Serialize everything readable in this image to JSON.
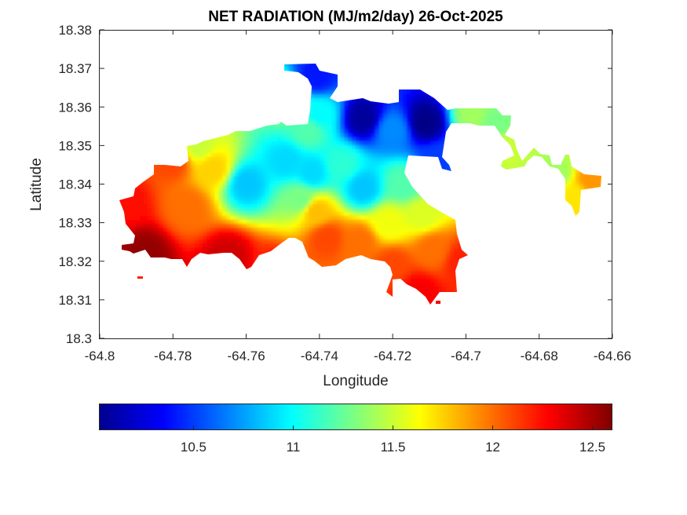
{
  "chart_data": {
    "type": "heatmap",
    "title": "NET RADIATION (MJ/m2/day) 26-Oct-2025",
    "xlabel": "Longitude",
    "ylabel": "Latitude",
    "xlim": [
      -64.8,
      -64.66
    ],
    "ylim": [
      18.3,
      18.38
    ],
    "x_ticks": [
      -64.8,
      -64.78,
      -64.76,
      -64.74,
      -64.72,
      -64.7,
      -64.68,
      -64.66
    ],
    "x_tick_labels": [
      "-64.8",
      "-64.78",
      "-64.76",
      "-64.74",
      "-64.72",
      "-64.7",
      "-64.68",
      "-64.66"
    ],
    "y_ticks": [
      18.3,
      18.31,
      18.32,
      18.33,
      18.34,
      18.35,
      18.36,
      18.37,
      18.38
    ],
    "y_tick_labels": [
      "18.3",
      "18.31",
      "18.32",
      "18.33",
      "18.34",
      "18.35",
      "18.36",
      "18.37",
      "18.38"
    ],
    "colormap": "jet",
    "color_range": [
      10.03,
      12.6
    ],
    "colorbar": {
      "orientation": "horizontal",
      "placement": "bottom",
      "ticks": [
        10.5,
        11,
        11.5,
        12,
        12.5
      ],
      "tick_labels": [
        "10.5",
        "11",
        "11.5",
        "12",
        "12.5"
      ]
    },
    "grid": false,
    "field_samples": [
      {
        "lon": -64.788,
        "lat": 18.322,
        "value": 12.55
      },
      {
        "lon": -64.765,
        "lat": 18.321,
        "value": 12.4
      },
      {
        "lon": -64.752,
        "lat": 18.318,
        "value": 12.2
      },
      {
        "lon": -64.793,
        "lat": 18.335,
        "value": 12.25
      },
      {
        "lon": -64.776,
        "lat": 18.334,
        "value": 12.0
      },
      {
        "lon": -64.769,
        "lat": 18.344,
        "value": 11.75
      },
      {
        "lon": -64.773,
        "lat": 18.35,
        "value": 11.5
      },
      {
        "lon": -64.76,
        "lat": 18.34,
        "value": 10.85
      },
      {
        "lon": -64.749,
        "lat": 18.346,
        "value": 10.9
      },
      {
        "lon": -64.742,
        "lat": 18.343,
        "value": 10.9
      },
      {
        "lon": -64.745,
        "lat": 18.336,
        "value": 11.3
      },
      {
        "lon": -64.741,
        "lat": 18.333,
        "value": 11.8
      },
      {
        "lon": -64.738,
        "lat": 18.326,
        "value": 12.1
      },
      {
        "lon": -64.729,
        "lat": 18.325,
        "value": 12.0
      },
      {
        "lon": -64.721,
        "lat": 18.33,
        "value": 11.6
      },
      {
        "lon": -64.72,
        "lat": 18.319,
        "value": 12.1
      },
      {
        "lon": -64.713,
        "lat": 18.312,
        "value": 12.3
      },
      {
        "lon": -64.709,
        "lat": 18.323,
        "value": 12.0
      },
      {
        "lon": -64.712,
        "lat": 18.332,
        "value": 11.55
      },
      {
        "lon": -64.717,
        "lat": 18.34,
        "value": 11.2
      },
      {
        "lon": -64.728,
        "lat": 18.339,
        "value": 10.85
      },
      {
        "lon": -64.734,
        "lat": 18.345,
        "value": 11.1
      },
      {
        "lon": -64.743,
        "lat": 18.354,
        "value": 11.2
      },
      {
        "lon": -64.749,
        "lat": 18.362,
        "value": 11.4
      },
      {
        "lon": -64.74,
        "lat": 18.358,
        "value": 11.0
      },
      {
        "lon": -64.728,
        "lat": 18.357,
        "value": 10.1
      },
      {
        "lon": -64.72,
        "lat": 18.354,
        "value": 10.7
      },
      {
        "lon": -64.711,
        "lat": 18.356,
        "value": 10.05
      },
      {
        "lon": -64.708,
        "lat": 18.346,
        "value": 10.5
      },
      {
        "lon": -64.741,
        "lat": 18.368,
        "value": 10.4
      },
      {
        "lon": -64.698,
        "lat": 18.358,
        "value": 11.4
      },
      {
        "lon": -64.692,
        "lat": 18.356,
        "value": 11.3
      },
      {
        "lon": -64.689,
        "lat": 18.349,
        "value": 11.5
      },
      {
        "lon": -64.675,
        "lat": 18.343,
        "value": 11.4
      },
      {
        "lon": -64.67,
        "lat": 18.337,
        "value": 11.7
      },
      {
        "lon": -64.666,
        "lat": 18.341,
        "value": 11.9
      },
      {
        "lon": -64.701,
        "lat": 18.32,
        "value": 12.2
      },
      {
        "lon": -64.78,
        "lat": 18.346,
        "value": 12.1
      }
    ]
  }
}
